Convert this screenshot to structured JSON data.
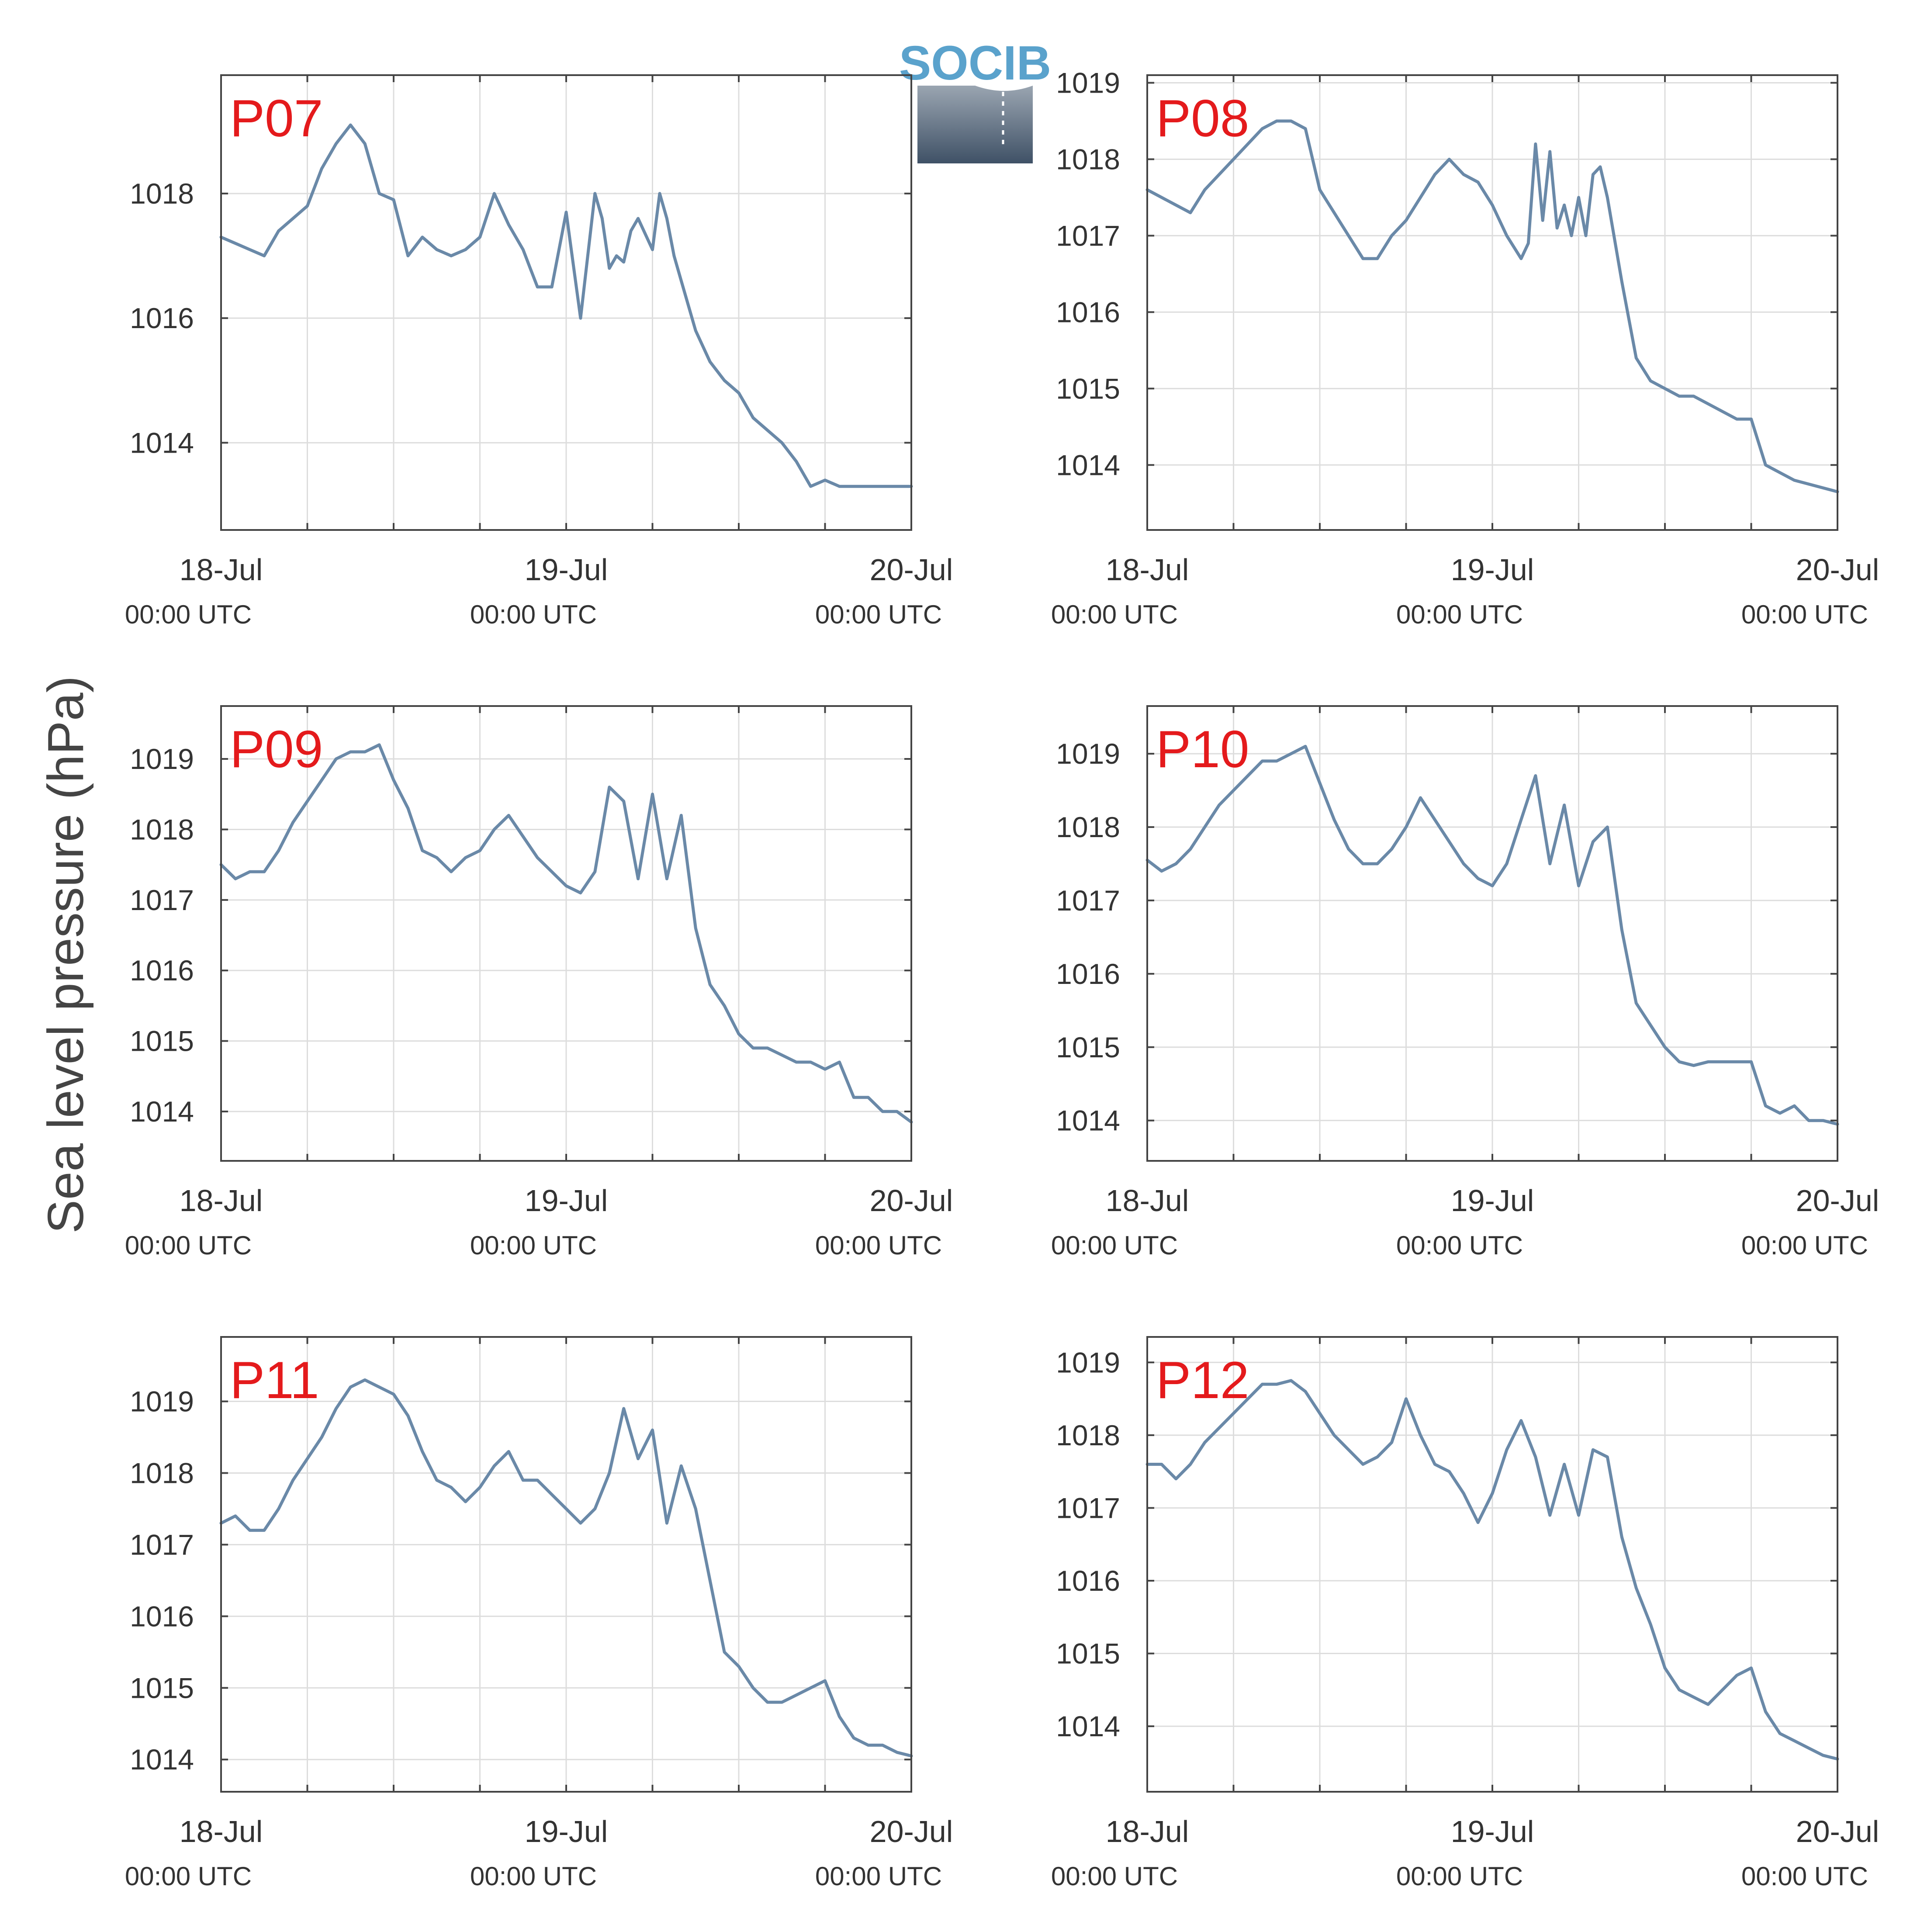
{
  "figure": {
    "ylabel": "Sea level pressure (hPa)",
    "logo_text": "SOCIB",
    "colors": {
      "line": "#6a89a8",
      "panel_label": "#e41a1c",
      "grid": "#dddddd",
      "axis": "#444444",
      "text": "#333333",
      "logo_text": "#5aa2cc"
    }
  },
  "chart_data": [
    {
      "type": "line",
      "panel": "P07",
      "x_unit": "hours since 18-Jul 00:00 UTC",
      "xlim": [
        0,
        48
      ],
      "xticks": [
        0,
        24,
        48
      ],
      "xtick_dates": [
        "18-Jul",
        "19-Jul",
        "20-Jul"
      ],
      "xtick_times": [
        "00:00 UTC",
        "00:00 UTC",
        "00:00 UTC"
      ],
      "ylim": [
        1012.6,
        1019.9
      ],
      "yticks": [
        1014,
        1016,
        1018
      ],
      "grid": true,
      "x": [
        0,
        1,
        2,
        3,
        4,
        6,
        6.5,
        7,
        8,
        9,
        10,
        11,
        12,
        13,
        14,
        15,
        16,
        17,
        18,
        19,
        20,
        21,
        21.5,
        22,
        23,
        24,
        25,
        26,
        26.5,
        27,
        27.5,
        28,
        28.5,
        29,
        30,
        30.5,
        31,
        31.5,
        32,
        32.5,
        33,
        34,
        35,
        36,
        37,
        38,
        39,
        40,
        41,
        42,
        43,
        44,
        45,
        46,
        47,
        48
      ],
      "y": [
        1017.3,
        1017.2,
        1017.1,
        1017.0,
        1017.4,
        1017.8,
        1018.1,
        1018.4,
        1018.8,
        1019.1,
        1018.8,
        1018.0,
        1017.9,
        1017.0,
        1017.3,
        1017.1,
        1017.0,
        1017.1,
        1017.3,
        1018.0,
        1017.5,
        1017.1,
        1016.8,
        1016.5,
        1016.5,
        1017.7,
        1016.0,
        1018.0,
        1017.6,
        1016.8,
        1017.0,
        1016.9,
        1017.4,
        1017.6,
        1017.1,
        1018.0,
        1017.6,
        1017.0,
        1016.6,
        1016.2,
        1015.8,
        1015.3,
        1015.0,
        1014.8,
        1014.4,
        1014.2,
        1014.0,
        1013.7,
        1013.3,
        1013.4,
        1013.3,
        1013.3,
        1013.3,
        1013.3,
        1013.3,
        1013.3
      ]
    },
    {
      "type": "line",
      "panel": "P08",
      "x_unit": "hours since 18-Jul 00:00 UTC",
      "xlim": [
        0,
        48
      ],
      "xticks": [
        0,
        24,
        48
      ],
      "xtick_dates": [
        "18-Jul",
        "19-Jul",
        "20-Jul"
      ],
      "xtick_times": [
        "00:00 UTC",
        "00:00 UTC",
        "00:00 UTC"
      ],
      "ylim": [
        1013.15,
        1019.1
      ],
      "yticks": [
        1014,
        1015,
        1016,
        1017,
        1018,
        1019
      ],
      "grid": true,
      "x": [
        0,
        1,
        2,
        3,
        4,
        5,
        6,
        7,
        8,
        9,
        10,
        11,
        12,
        13,
        14,
        15,
        16,
        17,
        18,
        19,
        20,
        21,
        22,
        23,
        24,
        25,
        26,
        26.5,
        27,
        27.5,
        28,
        28.5,
        29,
        29.5,
        30,
        30.5,
        31,
        31.5,
        32,
        33,
        34,
        35,
        36,
        37,
        38,
        39,
        40,
        41,
        42,
        43,
        44,
        45,
        46,
        47,
        48
      ],
      "y": [
        1017.6,
        1017.5,
        1017.4,
        1017.3,
        1017.6,
        1017.8,
        1018.0,
        1018.2,
        1018.4,
        1018.5,
        1018.5,
        1018.4,
        1017.6,
        1017.3,
        1017.0,
        1016.7,
        1016.7,
        1017.0,
        1017.2,
        1017.5,
        1017.8,
        1018.0,
        1017.8,
        1017.7,
        1017.4,
        1017.0,
        1016.7,
        1016.9,
        1018.2,
        1017.2,
        1018.1,
        1017.1,
        1017.4,
        1017.0,
        1017.5,
        1017.0,
        1017.8,
        1017.9,
        1017.5,
        1016.4,
        1015.4,
        1015.1,
        1015.0,
        1014.9,
        1014.9,
        1014.8,
        1014.7,
        1014.6,
        1014.6,
        1014.0,
        1013.9,
        1013.8,
        1013.75,
        1013.7,
        1013.65
      ]
    },
    {
      "type": "line",
      "panel": "P09",
      "x_unit": "hours since 18-Jul 00:00 UTC",
      "xlim": [
        0,
        48
      ],
      "xticks": [
        0,
        24,
        48
      ],
      "xtick_dates": [
        "18-Jul",
        "19-Jul",
        "20-Jul"
      ],
      "xtick_times": [
        "00:00 UTC",
        "00:00 UTC",
        "00:00 UTC"
      ],
      "ylim": [
        1013.3,
        1019.75
      ],
      "yticks": [
        1014,
        1015,
        1016,
        1017,
        1018,
        1019
      ],
      "grid": true,
      "x": [
        0,
        1,
        2,
        3,
        4,
        5,
        6,
        7,
        8,
        9,
        10,
        11,
        12,
        13,
        14,
        15,
        16,
        17,
        18,
        19,
        20,
        21,
        22,
        23,
        24,
        25,
        26,
        27,
        28,
        29,
        30,
        31,
        32,
        33,
        34,
        35,
        36,
        37,
        38,
        39,
        40,
        41,
        42,
        43,
        44,
        45,
        46,
        47,
        48
      ],
      "y": [
        1017.5,
        1017.3,
        1017.4,
        1017.4,
        1017.7,
        1018.1,
        1018.4,
        1018.7,
        1019.0,
        1019.1,
        1019.1,
        1019.2,
        1018.7,
        1018.3,
        1017.7,
        1017.6,
        1017.4,
        1017.6,
        1017.7,
        1018.0,
        1018.2,
        1017.9,
        1017.6,
        1017.4,
        1017.2,
        1017.1,
        1017.4,
        1018.6,
        1018.4,
        1017.3,
        1018.5,
        1017.3,
        1018.2,
        1016.6,
        1015.8,
        1015.5,
        1015.1,
        1014.9,
        1014.9,
        1014.8,
        1014.7,
        1014.7,
        1014.6,
        1014.7,
        1014.2,
        1014.2,
        1014.0,
        1014.0,
        1013.85
      ]
    },
    {
      "type": "line",
      "panel": "P10",
      "x_unit": "hours since 18-Jul 00:00 UTC",
      "xlim": [
        0,
        48
      ],
      "xticks": [
        0,
        24,
        48
      ],
      "xtick_dates": [
        "18-Jul",
        "19-Jul",
        "20-Jul"
      ],
      "xtick_times": [
        "00:00 UTC",
        "00:00 UTC",
        "00:00 UTC"
      ],
      "ylim": [
        1013.45,
        1019.65
      ],
      "yticks": [
        1014,
        1015,
        1016,
        1017,
        1018,
        1019
      ],
      "grid": true,
      "x": [
        0,
        1,
        2,
        3,
        4,
        5,
        6,
        7,
        8,
        9,
        10,
        11,
        12,
        13,
        14,
        15,
        16,
        17,
        18,
        19,
        20,
        21,
        22,
        23,
        24,
        25,
        26,
        27,
        28,
        29,
        30,
        31,
        32,
        33,
        34,
        35,
        36,
        37,
        38,
        39,
        40,
        41,
        42,
        43,
        44,
        45,
        46,
        47,
        48
      ],
      "y": [
        1017.55,
        1017.4,
        1017.5,
        1017.7,
        1018.0,
        1018.3,
        1018.5,
        1018.7,
        1018.9,
        1018.9,
        1019.0,
        1019.1,
        1018.6,
        1018.1,
        1017.7,
        1017.5,
        1017.5,
        1017.7,
        1018.0,
        1018.4,
        1018.1,
        1017.8,
        1017.5,
        1017.3,
        1017.2,
        1017.5,
        1018.1,
        1018.7,
        1017.5,
        1018.3,
        1017.2,
        1017.8,
        1018.0,
        1016.6,
        1015.6,
        1015.3,
        1015.0,
        1014.8,
        1014.75,
        1014.8,
        1014.8,
        1014.8,
        1014.8,
        1014.2,
        1014.1,
        1014.2,
        1014.0,
        1014.0,
        1013.95
      ]
    },
    {
      "type": "line",
      "panel": "P11",
      "x_unit": "hours since 18-Jul 00:00 UTC",
      "xlim": [
        0,
        48
      ],
      "xticks": [
        0,
        24,
        48
      ],
      "xtick_dates": [
        "18-Jul",
        "19-Jul",
        "20-Jul"
      ],
      "xtick_times": [
        "00:00 UTC",
        "00:00 UTC",
        "00:00 UTC"
      ],
      "ylim": [
        1013.55,
        1019.9
      ],
      "yticks": [
        1014,
        1015,
        1016,
        1017,
        1018,
        1019
      ],
      "grid": true,
      "x": [
        0,
        1,
        2,
        3,
        4,
        5,
        6,
        7,
        8,
        9,
        10,
        11,
        12,
        13,
        14,
        15,
        16,
        17,
        18,
        19,
        20,
        21,
        22,
        23,
        24,
        25,
        26,
        27,
        28,
        29,
        30,
        31,
        32,
        33,
        34,
        35,
        36,
        37,
        38,
        39,
        40,
        41,
        42,
        43,
        44,
        45,
        46,
        47,
        48
      ],
      "y": [
        1017.3,
        1017.4,
        1017.2,
        1017.2,
        1017.5,
        1017.9,
        1018.2,
        1018.5,
        1018.9,
        1019.2,
        1019.3,
        1019.2,
        1019.1,
        1018.8,
        1018.3,
        1017.9,
        1017.8,
        1017.6,
        1017.8,
        1018.1,
        1018.3,
        1017.9,
        1017.9,
        1017.7,
        1017.5,
        1017.3,
        1017.5,
        1018.0,
        1018.9,
        1018.2,
        1018.6,
        1017.3,
        1018.1,
        1017.5,
        1016.5,
        1015.5,
        1015.3,
        1015.0,
        1014.8,
        1014.8,
        1014.9,
        1015.0,
        1015.1,
        1014.6,
        1014.3,
        1014.2,
        1014.2,
        1014.1,
        1014.05
      ]
    },
    {
      "type": "line",
      "panel": "P12",
      "x_unit": "hours since 18-Jul 00:00 UTC",
      "xlim": [
        0,
        48
      ],
      "xticks": [
        0,
        24,
        48
      ],
      "xtick_dates": [
        "18-Jul",
        "19-Jul",
        "20-Jul"
      ],
      "xtick_times": [
        "00:00 UTC",
        "00:00 UTC",
        "00:00 UTC"
      ],
      "ylim": [
        1013.1,
        1019.35
      ],
      "yticks": [
        1014,
        1015,
        1016,
        1017,
        1018,
        1019
      ],
      "grid": true,
      "x": [
        0,
        1,
        2,
        3,
        4,
        5,
        6,
        7,
        8,
        9,
        10,
        11,
        12,
        13,
        14,
        15,
        16,
        17,
        18,
        19,
        20,
        21,
        22,
        23,
        24,
        25,
        26,
        27,
        28,
        29,
        30,
        31,
        32,
        33,
        34,
        35,
        36,
        37,
        38,
        39,
        40,
        41,
        42,
        43,
        44,
        45,
        46,
        47,
        48
      ],
      "y": [
        1017.6,
        1017.6,
        1017.4,
        1017.6,
        1017.9,
        1018.1,
        1018.3,
        1018.5,
        1018.7,
        1018.7,
        1018.75,
        1018.6,
        1018.3,
        1018.0,
        1017.8,
        1017.6,
        1017.7,
        1017.9,
        1018.5,
        1018.0,
        1017.6,
        1017.5,
        1017.2,
        1016.8,
        1017.2,
        1017.8,
        1018.2,
        1017.7,
        1016.9,
        1017.6,
        1016.9,
        1017.8,
        1017.7,
        1016.6,
        1015.9,
        1015.4,
        1014.8,
        1014.5,
        1014.4,
        1014.3,
        1014.5,
        1014.7,
        1014.8,
        1014.2,
        1013.9,
        1013.8,
        1013.7,
        1013.6,
        1013.55
      ]
    }
  ]
}
